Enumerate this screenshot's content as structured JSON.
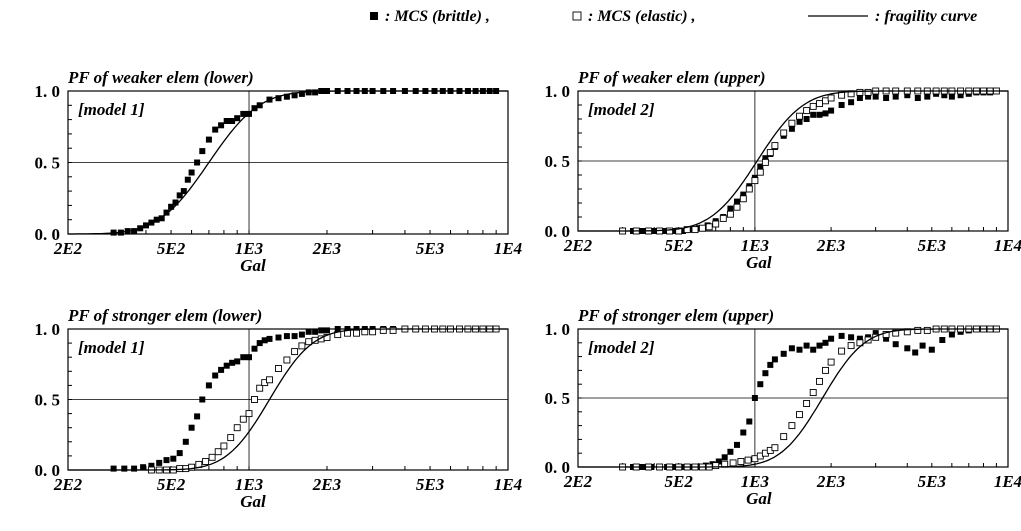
{
  "legend": {
    "brittle_label": ": MCS (brittle) ,",
    "elastic_label": ": MCS (elastic) ,",
    "curve_label": ": fragility curve"
  },
  "colors": {
    "ink": "#000000",
    "background": "#ffffff"
  },
  "chart_data": [
    {
      "type": "scatter",
      "title": "PF of weaker elem (lower)",
      "model_label": "[model 1]",
      "xlabel": "Gal",
      "x_scale": "log",
      "xlim": [
        200,
        10000
      ],
      "ylim": [
        0,
        1
      ],
      "x_tick_labels": [
        "2E2",
        "5E2",
        "1E3",
        "2E3",
        "5E3",
        "1E4"
      ],
      "y_tick_labels": [
        "0. 0",
        "0. 5",
        "1. 0"
      ],
      "reference_lines": {
        "y": 0.5,
        "x": 1000
      },
      "series": [
        {
          "name": "MCS (brittle)",
          "marker": "filled-square",
          "x": [
            300,
            320,
            340,
            360,
            380,
            400,
            420,
            440,
            460,
            480,
            500,
            520,
            540,
            560,
            580,
            600,
            630,
            660,
            700,
            740,
            780,
            820,
            860,
            900,
            950,
            1000,
            1050,
            1100,
            1200,
            1300,
            1400,
            1500,
            1600,
            1700,
            1800,
            1900,
            2000,
            2200,
            2400,
            2600,
            2800,
            3000,
            3300,
            3600,
            4000,
            4400,
            4800,
            5200,
            5600,
            6000,
            6500,
            7000,
            7500,
            8000,
            8500,
            9000
          ],
          "y": [
            0.01,
            0.01,
            0.02,
            0.02,
            0.04,
            0.06,
            0.08,
            0.1,
            0.11,
            0.15,
            0.19,
            0.22,
            0.27,
            0.3,
            0.38,
            0.43,
            0.5,
            0.58,
            0.66,
            0.73,
            0.76,
            0.79,
            0.79,
            0.81,
            0.84,
            0.84,
            0.88,
            0.9,
            0.94,
            0.95,
            0.96,
            0.97,
            0.98,
            0.99,
            0.99,
            1,
            1,
            1,
            1,
            1,
            1,
            1,
            1,
            1,
            1,
            1,
            1,
            1,
            1,
            1,
            1,
            1,
            1,
            1,
            1,
            1
          ]
        },
        {
          "name": "fragility curve",
          "type": "line",
          "median": 700,
          "beta": 0.35
        }
      ]
    },
    {
      "type": "scatter",
      "title": "PF of weaker elem (upper)",
      "model_label": "[model 2]",
      "xlabel": "Gal",
      "x_scale": "log",
      "xlim": [
        200,
        10000
      ],
      "ylim": [
        0,
        1
      ],
      "x_tick_labels": [
        "2E2",
        "5E2",
        "1E3",
        "2E3",
        "5E3",
        "1E4"
      ],
      "y_tick_labels": [
        "0. 0",
        "0. 5",
        "1. 0"
      ],
      "reference_lines": {
        "y": 0.5,
        "x": 1000
      },
      "series": [
        {
          "name": "MCS (brittle)",
          "marker": "filled-square",
          "x": [
            300,
            330,
            360,
            400,
            440,
            480,
            520,
            560,
            600,
            650,
            700,
            750,
            800,
            850,
            900,
            950,
            1000,
            1050,
            1100,
            1150,
            1200,
            1300,
            1400,
            1500,
            1600,
            1700,
            1800,
            1900,
            2000,
            2200,
            2400,
            2600,
            2800,
            3000,
            3300,
            3600,
            4000,
            4400,
            4800,
            5200,
            5600,
            6000,
            6500,
            7000,
            7500,
            8000,
            8500,
            9000
          ],
          "y": [
            0,
            0,
            0,
            0,
            0,
            0,
            0,
            0.01,
            0.02,
            0.04,
            0.07,
            0.1,
            0.16,
            0.21,
            0.26,
            0.32,
            0.38,
            0.46,
            0.52,
            0.55,
            0.6,
            0.68,
            0.73,
            0.78,
            0.8,
            0.83,
            0.83,
            0.84,
            0.86,
            0.9,
            0.92,
            0.95,
            0.96,
            0.96,
            0.95,
            0.96,
            0.97,
            0.95,
            0.96,
            0.98,
            0.97,
            0.96,
            0.97,
            0.98,
            0.99,
            0.99,
            0.99,
            1
          ]
        },
        {
          "name": "MCS (elastic)",
          "marker": "open-square",
          "x": [
            300,
            340,
            380,
            420,
            460,
            500,
            540,
            580,
            620,
            660,
            700,
            750,
            800,
            850,
            900,
            950,
            1000,
            1050,
            1100,
            1150,
            1200,
            1300,
            1400,
            1500,
            1600,
            1700,
            1800,
            1900,
            2000,
            2200,
            2400,
            2600,
            2800,
            3000,
            3300,
            3600,
            4000,
            4400,
            4800,
            5200,
            5600,
            6000,
            6500,
            7000,
            7500,
            8000,
            8500,
            9000
          ],
          "y": [
            0,
            0,
            0,
            0,
            0,
            0,
            0.01,
            0.01,
            0.02,
            0.03,
            0.05,
            0.09,
            0.12,
            0.17,
            0.23,
            0.3,
            0.36,
            0.42,
            0.49,
            0.56,
            0.61,
            0.7,
            0.77,
            0.82,
            0.86,
            0.89,
            0.91,
            0.93,
            0.95,
            0.97,
            0.98,
            0.99,
            0.99,
            1,
            1,
            1,
            1,
            1,
            1,
            1,
            1,
            1,
            1,
            1,
            1,
            1,
            1,
            1
          ]
        },
        {
          "name": "fragility curve",
          "type": "line",
          "median": 1020,
          "beta": 0.33
        }
      ]
    },
    {
      "type": "scatter",
      "title": "PF of stronger elem (lower)",
      "model_label": "[model 1]",
      "xlabel": "Gal",
      "x_scale": "log",
      "xlim": [
        200,
        10000
      ],
      "ylim": [
        0,
        1
      ],
      "x_tick_labels": [
        "2E2",
        "5E2",
        "1E3",
        "2E3",
        "5E3",
        "1E4"
      ],
      "y_tick_labels": [
        "0. 0",
        "0. 5",
        "1. 0"
      ],
      "reference_lines": {
        "y": 0.5,
        "x": 1000
      },
      "series": [
        {
          "name": "MCS (brittle)",
          "marker": "filled-square",
          "x": [
            300,
            330,
            360,
            390,
            420,
            450,
            480,
            510,
            540,
            570,
            600,
            630,
            660,
            700,
            740,
            780,
            820,
            860,
            900,
            950,
            1000,
            1050,
            1100,
            1150,
            1200,
            1300,
            1400,
            1500,
            1600,
            1700,
            1800,
            1900,
            2000,
            2200,
            2400,
            2600,
            2800,
            3000,
            3300,
            3600,
            4000,
            4400,
            4800,
            5200,
            5600,
            6000,
            6500,
            7000,
            7500,
            8000,
            8500,
            9000
          ],
          "y": [
            0.01,
            0.01,
            0.01,
            0.02,
            0.03,
            0.05,
            0.07,
            0.08,
            0.12,
            0.2,
            0.3,
            0.38,
            0.5,
            0.6,
            0.67,
            0.71,
            0.74,
            0.76,
            0.77,
            0.8,
            0.8,
            0.86,
            0.9,
            0.92,
            0.93,
            0.94,
            0.95,
            0.95,
            0.96,
            0.98,
            0.98,
            0.99,
            0.99,
            1,
            1,
            1,
            1,
            1,
            1,
            1,
            1,
            1,
            1,
            1,
            1,
            1,
            1,
            1,
            1,
            1,
            1,
            1
          ]
        },
        {
          "name": "MCS (elastic)",
          "marker": "open-square",
          "x": [
            420,
            450,
            480,
            510,
            540,
            570,
            600,
            640,
            680,
            720,
            760,
            800,
            850,
            900,
            950,
            1000,
            1050,
            1100,
            1150,
            1200,
            1300,
            1400,
            1500,
            1600,
            1700,
            1800,
            1900,
            2000,
            2200,
            2400,
            2600,
            2800,
            3000,
            3300,
            3600,
            4000,
            4400,
            4800,
            5200,
            5600,
            6000,
            6500,
            7000,
            7500,
            8000,
            8500,
            9000
          ],
          "y": [
            0,
            0,
            0,
            0,
            0.01,
            0.01,
            0.02,
            0.04,
            0.06,
            0.09,
            0.13,
            0.17,
            0.23,
            0.3,
            0.36,
            0.4,
            0.5,
            0.58,
            0.62,
            0.64,
            0.72,
            0.78,
            0.84,
            0.88,
            0.91,
            0.92,
            0.93,
            0.94,
            0.96,
            0.97,
            0.97,
            0.98,
            0.98,
            0.99,
            0.99,
            1,
            1,
            1,
            1,
            1,
            1,
            1,
            1,
            1,
            1,
            1,
            1
          ]
        },
        {
          "name": "fragility curve",
          "type": "line",
          "median": 1200,
          "beta": 0.3
        }
      ]
    },
    {
      "type": "scatter",
      "title": "PF of stronger elem (upper)",
      "model_label": "[model 2]",
      "xlabel": "Gal",
      "x_scale": "log",
      "xlim": [
        200,
        10000
      ],
      "ylim": [
        0,
        1
      ],
      "x_tick_labels": [
        "2E2",
        "5E2",
        "1E3",
        "2E3",
        "5E3",
        "1E4"
      ],
      "y_tick_labels": [
        "0. 0",
        "0. 5",
        "1. 0"
      ],
      "reference_lines": {
        "y": 0.5,
        "x": 1000
      },
      "series": [
        {
          "name": "MCS (brittle)",
          "marker": "filled-square",
          "x": [
            300,
            330,
            360,
            390,
            420,
            450,
            480,
            510,
            540,
            570,
            600,
            640,
            680,
            720,
            760,
            800,
            850,
            900,
            950,
            1000,
            1050,
            1100,
            1150,
            1200,
            1300,
            1400,
            1500,
            1600,
            1700,
            1800,
            1900,
            2000,
            2200,
            2400,
            2600,
            2800,
            3000,
            3300,
            3600,
            4000,
            4300,
            4600,
            5000,
            5500,
            6000,
            6500,
            7000,
            7500,
            8000,
            8500,
            9000
          ],
          "y": [
            0,
            0,
            0,
            0,
            0,
            0,
            0,
            0,
            0,
            0,
            0,
            0.01,
            0.02,
            0.04,
            0.07,
            0.11,
            0.16,
            0.25,
            0.33,
            0.5,
            0.6,
            0.68,
            0.74,
            0.78,
            0.82,
            0.86,
            0.85,
            0.88,
            0.85,
            0.88,
            0.9,
            0.93,
            0.95,
            0.94,
            0.93,
            0.94,
            0.97,
            0.93,
            0.89,
            0.86,
            0.83,
            0.88,
            0.85,
            0.92,
            0.96,
            0.98,
            0.99,
            1,
            1,
            1,
            1
          ]
        },
        {
          "name": "MCS (elastic)",
          "marker": "open-square",
          "x": [
            300,
            340,
            380,
            420,
            460,
            500,
            540,
            580,
            620,
            660,
            700,
            760,
            820,
            880,
            940,
            1000,
            1050,
            1100,
            1150,
            1200,
            1300,
            1400,
            1500,
            1600,
            1700,
            1800,
            1900,
            2000,
            2200,
            2400,
            2600,
            2800,
            3000,
            3300,
            3600,
            4000,
            4400,
            4800,
            5200,
            5600,
            6000,
            6500,
            7000,
            7500,
            8000,
            8500,
            9000
          ],
          "y": [
            0,
            0,
            0,
            0,
            0,
            0,
            0,
            0,
            0,
            0,
            0.01,
            0.02,
            0.03,
            0.04,
            0.05,
            0.06,
            0.08,
            0.1,
            0.12,
            0.14,
            0.22,
            0.3,
            0.38,
            0.46,
            0.54,
            0.62,
            0.7,
            0.76,
            0.84,
            0.88,
            0.9,
            0.92,
            0.94,
            0.96,
            0.97,
            0.98,
            0.99,
            0.99,
            1,
            1,
            1,
            1,
            1,
            1,
            1,
            1,
            1
          ]
        },
        {
          "name": "fragility curve",
          "type": "line",
          "median": 1850,
          "beta": 0.3
        }
      ]
    }
  ]
}
